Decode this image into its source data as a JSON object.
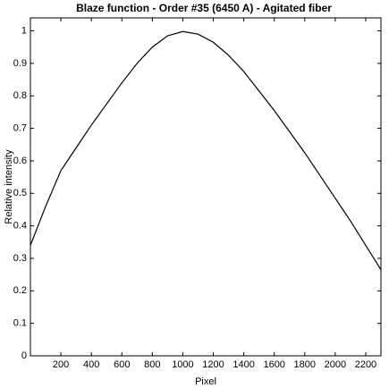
{
  "chart_data": {
    "type": "line",
    "title": "Blaze function - Order #35 (6450 A) - Agitated fiber",
    "xlabel": "Pixel",
    "ylabel": "Relative intensity",
    "x": [
      0,
      100,
      200,
      300,
      400,
      500,
      600,
      700,
      800,
      900,
      1000,
      1100,
      1200,
      1300,
      1400,
      1500,
      1600,
      1700,
      1800,
      1900,
      2000,
      2100,
      2200,
      2300
    ],
    "series": [
      {
        "color": "#000000",
        "values": [
          0.34,
          0.46,
          0.57,
          0.64,
          0.71,
          0.775,
          0.84,
          0.9,
          0.95,
          0.985,
          0.998,
          0.99,
          0.965,
          0.925,
          0.875,
          0.815,
          0.755,
          0.69,
          0.625,
          0.555,
          0.485,
          0.415,
          0.34,
          0.265
        ]
      }
    ],
    "xlim": [
      0,
      2300
    ],
    "ylim": [
      0,
      1.04
    ],
    "xticks": [
      200,
      400,
      600,
      800,
      1000,
      1200,
      1400,
      1600,
      1800,
      2000,
      2200
    ],
    "yticks": [
      0,
      0.1,
      0.2,
      0.3,
      0.4,
      0.5,
      0.6,
      0.7,
      0.8,
      0.9,
      1
    ]
  }
}
